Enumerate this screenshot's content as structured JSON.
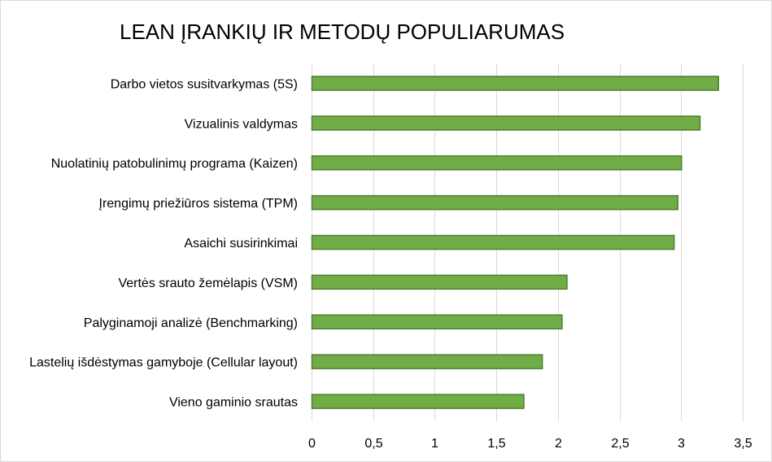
{
  "chart_data": {
    "type": "bar",
    "orientation": "horizontal",
    "title": "LEAN ĮRANKIŲ IR METODŲ POPULIARUMAS",
    "categories": [
      "Darbo vietos susitvarkymas (5S)",
      "Vizualinis valdymas",
      "Nuolatinių patobulinimų programa (Kaizen)",
      "Įrengimų priežiūros sistema (TPM)",
      "Asaichi susirinkimai",
      "Vertės srauto žemėlapis (VSM)",
      "Palyginamoji analizė (Benchmarking)",
      "Lastelių išdėstymas gamyboje (Cellular layout)",
      "Vieno gaminio srautas"
    ],
    "values": [
      3.3,
      3.15,
      3.0,
      2.97,
      2.94,
      2.07,
      2.03,
      1.87,
      1.72
    ],
    "xlim": [
      0,
      3.5
    ],
    "x_ticks": [
      "0",
      "0,5",
      "1",
      "1,5",
      "2",
      "2,5",
      "3",
      "3,5"
    ],
    "grid": true,
    "legend": "none",
    "colors": {
      "bar_fill": "#70ad47",
      "bar_stroke": "#507e32",
      "grid": "#d9d9d9"
    }
  }
}
